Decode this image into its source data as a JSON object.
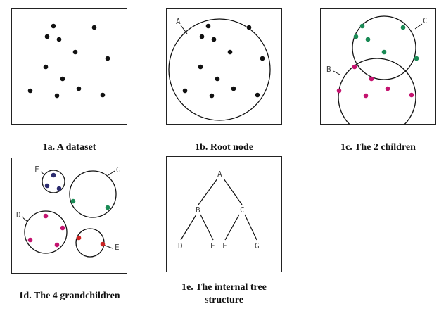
{
  "colors": {
    "black": "#111111",
    "green": "#1a8a55",
    "magenta": "#c4136f",
    "navy": "#2b2b6e",
    "red": "#cc2222"
  },
  "panels": [
    {
      "caption": "1a.  A dataset"
    },
    {
      "caption": "1b.  Root node",
      "labels": {
        "A": "A"
      }
    },
    {
      "caption": "1c.  The 2 children",
      "labels": {
        "B": "B",
        "C": "C"
      }
    },
    {
      "caption": "1d. The 4 grandchildren",
      "labels": {
        "D": "D",
        "E": "E",
        "F": "F",
        "G": "G"
      }
    },
    {
      "caption": "1e.  The internal tree structure",
      "labels": {
        "A": "A",
        "B": "B",
        "C": "C",
        "D": "D",
        "E": "E",
        "F": "F",
        "G": "G"
      }
    }
  ]
}
